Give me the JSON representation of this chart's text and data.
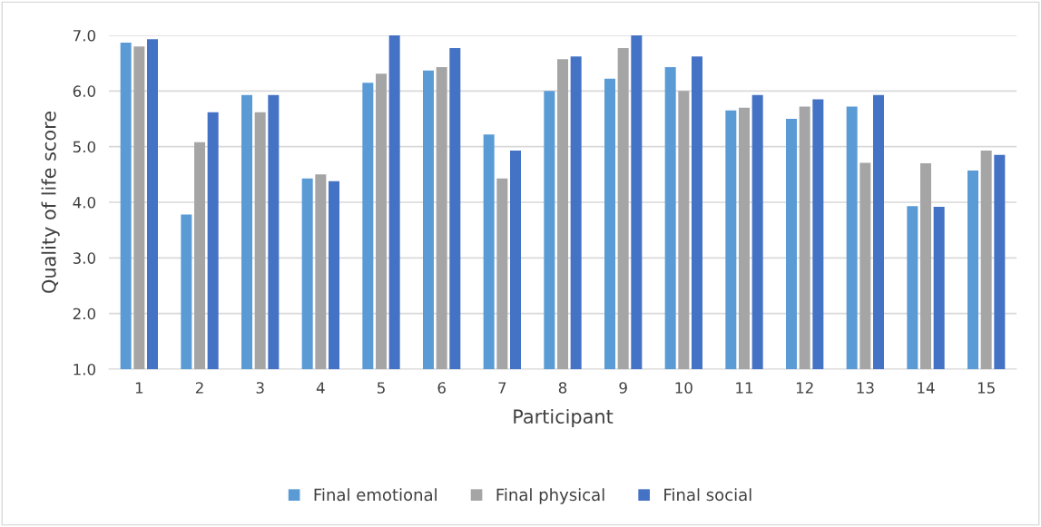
{
  "chart_data": {
    "type": "bar",
    "xlabel": "Participant",
    "ylabel": "Quality of life score",
    "categories": [
      "1",
      "2",
      "3",
      "4",
      "5",
      "6",
      "7",
      "8",
      "9",
      "10",
      "11",
      "12",
      "13",
      "14",
      "15"
    ],
    "series": [
      {
        "name": "Final emotional",
        "color": "#5b9bd5",
        "values": [
          6.87,
          3.78,
          5.93,
          4.43,
          6.15,
          6.37,
          5.22,
          6.0,
          6.22,
          6.43,
          5.65,
          5.5,
          5.72,
          3.93,
          4.57
        ]
      },
      {
        "name": "Final physical",
        "color": "#a5a5a5",
        "values": [
          6.8,
          5.08,
          5.62,
          4.5,
          6.31,
          6.43,
          4.43,
          6.57,
          6.77,
          6.0,
          5.7,
          5.72,
          4.71,
          4.7,
          4.93
        ]
      },
      {
        "name": "Final social",
        "color": "#4472c4",
        "values": [
          6.93,
          5.62,
          5.93,
          4.38,
          7.0,
          6.77,
          4.93,
          6.62,
          7.0,
          6.62,
          5.93,
          5.85,
          5.93,
          3.92,
          4.85
        ]
      }
    ],
    "ylim": [
      1.0,
      7.0
    ],
    "yticks": [
      {
        "value": 1,
        "label": "1.0"
      },
      {
        "value": 2,
        "label": "2.0"
      },
      {
        "value": 3,
        "label": "3.0"
      },
      {
        "value": 4,
        "label": "4.0"
      },
      {
        "value": 5,
        "label": "5.0"
      },
      {
        "value": 6,
        "label": "6.0"
      },
      {
        "value": 7,
        "label": "7.0"
      }
    ],
    "grid": "y",
    "legend": "bottom"
  }
}
